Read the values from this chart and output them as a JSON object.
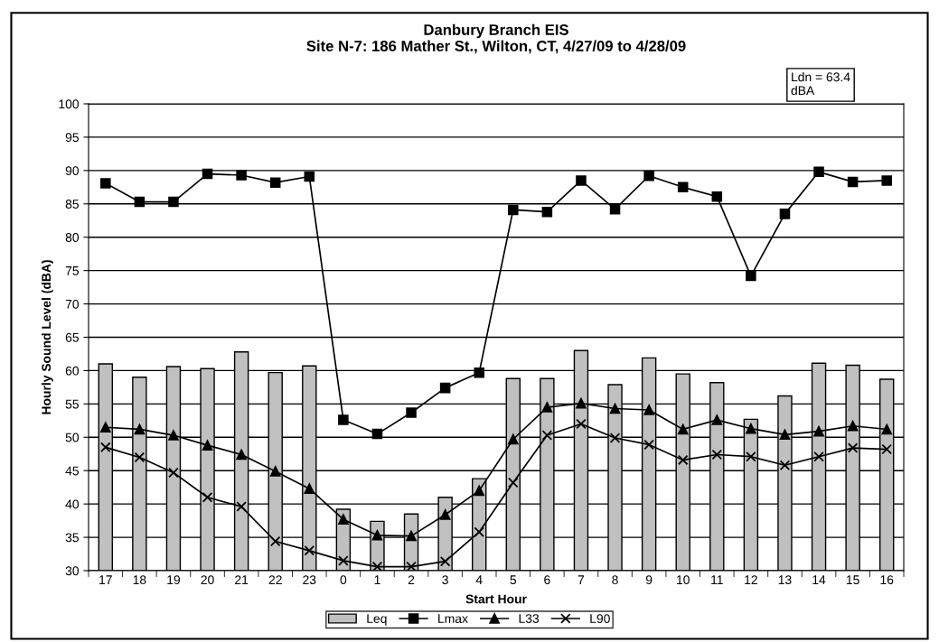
{
  "chart_data": {
    "type": "bar",
    "title": "Danbury Branch EIS\nSite N-7: 186 Mather St., Wilton, CT, 4/27/09 to 4/28/09",
    "xlabel": "Start Hour",
    "ylabel": "Hourly Sound Level (dBA)",
    "annotations": [
      "Ldn = 63.4\ndBA"
    ],
    "categories": [
      "17",
      "18",
      "19",
      "20",
      "21",
      "22",
      "23",
      "0",
      "1",
      "2",
      "3",
      "4",
      "5",
      "6",
      "7",
      "8",
      "9",
      "10",
      "11",
      "12",
      "13",
      "14",
      "15",
      "16"
    ],
    "series": [
      {
        "name": "Leq",
        "color": "#c0c0c0",
        "values": [
          61.0,
          59.0,
          60.6,
          60.3,
          62.8,
          59.7,
          60.7,
          39.2,
          37.4,
          38.5,
          41.0,
          43.8,
          58.8,
          58.8,
          63.0,
          57.9,
          61.9,
          59.5,
          58.2,
          52.7,
          56.2,
          61.1,
          60.8,
          58.7
        ]
      },
      {
        "name": "Lmax",
        "type": "line",
        "marker": "square",
        "color": "#000000",
        "values": [
          88.1,
          85.3,
          85.3,
          89.5,
          89.3,
          88.2,
          89.1,
          52.6,
          50.5,
          53.7,
          57.4,
          59.7,
          84.1,
          83.8,
          88.5,
          84.2,
          89.2,
          87.5,
          86.1,
          74.2,
          83.5,
          89.8,
          88.3,
          88.5
        ]
      },
      {
        "name": "L33",
        "type": "line",
        "marker": "triangle",
        "color": "#000000",
        "values": [
          51.5,
          51.2,
          50.3,
          48.8,
          47.4,
          44.9,
          42.3,
          37.7,
          35.3,
          35.2,
          38.4,
          42.0,
          49.7,
          54.5,
          55.1,
          54.3,
          54.1,
          51.2,
          52.6,
          51.3,
          50.4,
          50.9,
          51.7,
          51.2
        ]
      },
      {
        "name": "L90",
        "type": "line",
        "marker": "cross",
        "color": "#000000",
        "values": [
          48.5,
          47.0,
          44.7,
          41.0,
          39.6,
          34.4,
          33.0,
          31.5,
          30.6,
          30.6,
          31.4,
          35.8,
          43.2,
          50.3,
          52.0,
          49.9,
          48.9,
          46.6,
          47.4,
          47.1,
          45.8,
          47.1,
          48.4,
          48.2
        ]
      }
    ],
    "ylim": [
      30,
      100
    ],
    "yticks": [
      30,
      35,
      40,
      45,
      50,
      55,
      60,
      65,
      70,
      75,
      80,
      85,
      90,
      95,
      100
    ],
    "grid": "y",
    "legend": "bottom"
  }
}
